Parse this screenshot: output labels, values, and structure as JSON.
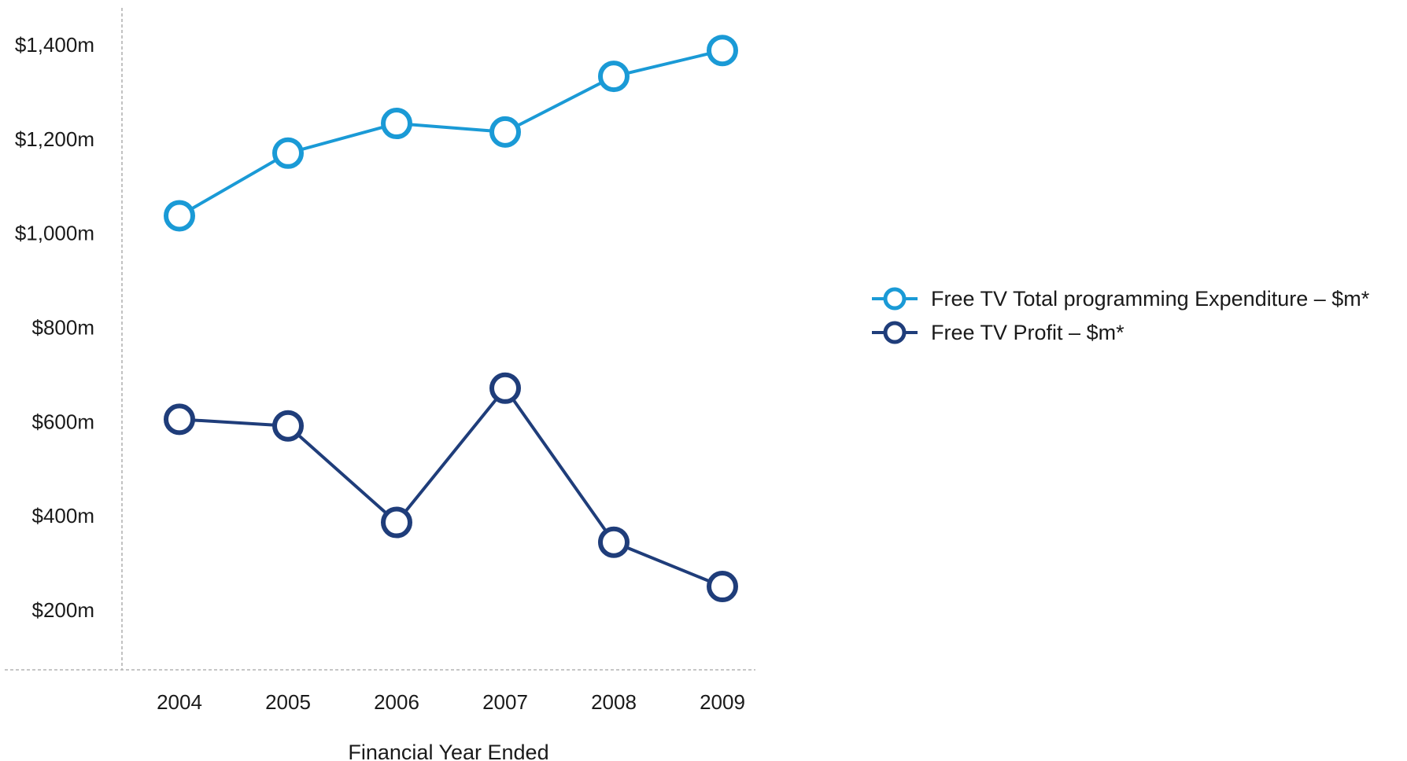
{
  "chart_data": {
    "type": "line",
    "title": "",
    "xlabel": "Financial Year Ended",
    "ylabel": "",
    "categories": [
      "2004",
      "2005",
      "2006",
      "2007",
      "2008",
      "2009"
    ],
    "y_ticks": [
      {
        "value": 200,
        "label": "$200m"
      },
      {
        "value": 400,
        "label": "$400m"
      },
      {
        "value": 600,
        "label": "$600m"
      },
      {
        "value": 800,
        "label": "$800m"
      },
      {
        "value": 1000,
        "label": "$1,000m"
      },
      {
        "value": 1200,
        "label": "$1,200m"
      },
      {
        "value": 1400,
        "label": "$1,400m"
      }
    ],
    "ylim": [
      65,
      1475
    ],
    "grid": false,
    "legend_position": "right",
    "series": [
      {
        "name": "Free TV Total programming Expenditure – $m*",
        "color": "#1a9ad6",
        "values": [
          1037,
          1170,
          1233,
          1215,
          1333,
          1388
        ]
      },
      {
        "name": "Free TV Profit – $m*",
        "color": "#1f3d7a",
        "values": [
          605,
          591,
          386,
          671,
          344,
          250
        ]
      }
    ]
  }
}
